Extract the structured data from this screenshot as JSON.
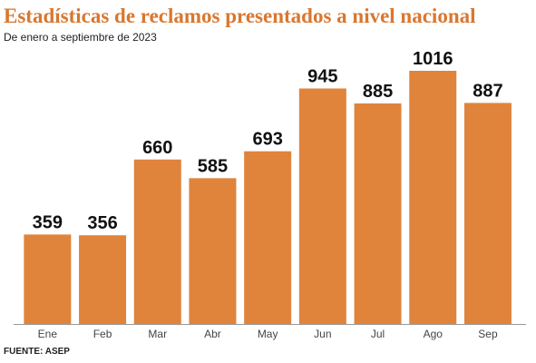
{
  "chart_data": {
    "type": "bar",
    "title": "Estadísticas de reclamos presentados a nivel nacional",
    "subtitle": "De enero a septiembre de 2023",
    "source": "FUENTE: ASEP",
    "categories": [
      "Ene",
      "Feb",
      "Mar",
      "Abr",
      "May",
      "Jun",
      "Jul",
      "Ago",
      "Sep"
    ],
    "values": [
      359,
      356,
      660,
      585,
      693,
      945,
      885,
      1016,
      887
    ],
    "color": "#e0843c"
  }
}
